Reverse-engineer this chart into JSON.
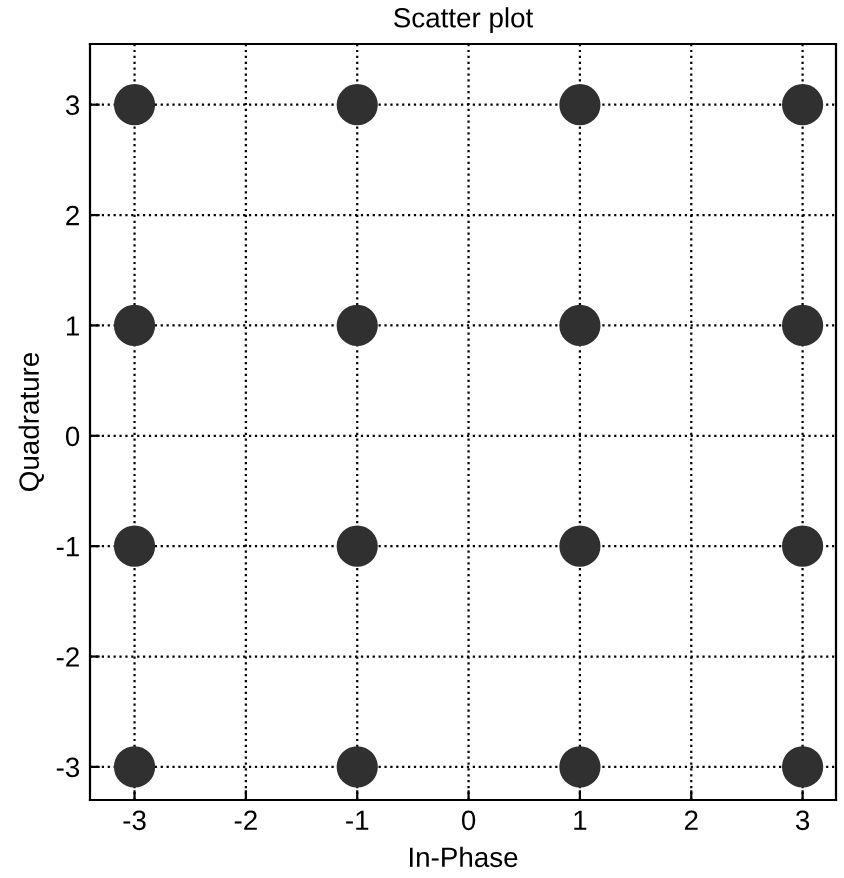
{
  "chart_data": {
    "type": "scatter",
    "title": "Scatter plot",
    "xlabel": "In-Phase",
    "ylabel": "Quadrature",
    "x": [
      -3,
      -1,
      1,
      3,
      -3,
      -1,
      1,
      3,
      -3,
      -1,
      1,
      3,
      -3,
      -1,
      1,
      3
    ],
    "values": [
      3,
      3,
      3,
      3,
      1,
      1,
      1,
      1,
      -1,
      -1,
      -1,
      -1,
      -3,
      -3,
      -3,
      -3
    ],
    "color": "#303030",
    "marker": "circle",
    "xlim": [
      -3.4,
      3.3
    ],
    "ylim": [
      -3.3,
      3.55
    ],
    "xticks": [
      -3,
      -2,
      -1,
      0,
      1,
      2,
      3
    ],
    "yticks": [
      -3,
      -2,
      -1,
      0,
      1,
      2,
      3
    ],
    "grid": true,
    "line_style": "dotted"
  }
}
